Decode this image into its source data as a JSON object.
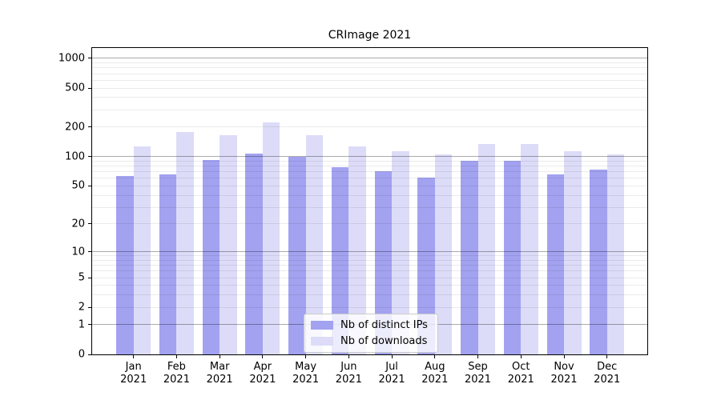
{
  "title": "CRImage 2021",
  "chart_data": {
    "type": "bar",
    "title": "CRImage 2021",
    "categories": [
      "Jan",
      "Feb",
      "Mar",
      "Apr",
      "May",
      "Jun",
      "Jul",
      "Aug",
      "Sep",
      "Oct",
      "Nov",
      "Dec"
    ],
    "category_year": "2021",
    "series": [
      {
        "name": "Nb of distinct IPs",
        "color": "#a2a2f0",
        "values": [
          63,
          66,
          92,
          108,
          99,
          78,
          71,
          61,
          91,
          91,
          66,
          74
        ]
      },
      {
        "name": "Nb of downloads",
        "color": "#dcdcf8",
        "values": [
          128,
          177,
          166,
          224,
          166,
          128,
          113,
          106,
          134,
          134,
          114,
          106
        ]
      }
    ],
    "y_scale": "log1p",
    "ylim": [
      0,
      1275
    ],
    "y_ticks": [
      0,
      1,
      2,
      5,
      10,
      20,
      50,
      100,
      200,
      500,
      1000
    ],
    "grid_minor": [
      2,
      3,
      4,
      5,
      6,
      7,
      8,
      9,
      20,
      30,
      40,
      50,
      60,
      70,
      80,
      90,
      200,
      300,
      400,
      500,
      600,
      700,
      800,
      900
    ],
    "grid_major": [
      1,
      10,
      100,
      1000
    ],
    "grid": true,
    "legend_position": "lower center",
    "colors": {
      "grid_minor": "rgba(0,0,0,0.08)",
      "grid_major": "rgba(0,0,0,0.33)",
      "axis": "#000000",
      "background": "#ffffff"
    }
  }
}
